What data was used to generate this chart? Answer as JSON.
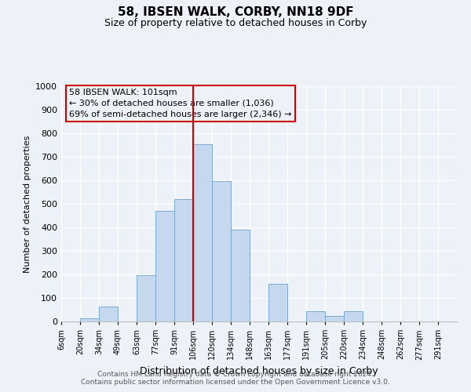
{
  "title": "58, IBSEN WALK, CORBY, NN18 9DF",
  "subtitle": "Size of property relative to detached houses in Corby",
  "xlabel": "Distribution of detached houses by size in Corby",
  "ylabel": "Number of detached properties",
  "bar_labels": [
    "6sqm",
    "20sqm",
    "34sqm",
    "49sqm",
    "63sqm",
    "77sqm",
    "91sqm",
    "106sqm",
    "120sqm",
    "134sqm",
    "148sqm",
    "163sqm",
    "177sqm",
    "191sqm",
    "205sqm",
    "220sqm",
    "234sqm",
    "248sqm",
    "262sqm",
    "277sqm",
    "291sqm"
  ],
  "bar_values": [
    0,
    12,
    63,
    0,
    198,
    470,
    520,
    755,
    597,
    390,
    0,
    160,
    0,
    43,
    25,
    45,
    0,
    0,
    0,
    0,
    0
  ],
  "bar_color": "#c5d8ed",
  "bar_edge_color": "#7aaad0",
  "vline_x_index": 7,
  "vline_color": "#cc0000",
  "annotation_title": "58 IBSEN WALK: 101sqm",
  "annotation_line1": "← 30% of detached houses are smaller (1,036)",
  "annotation_line2": "69% of semi-detached houses are larger (2,346) →",
  "annotation_box_edge": "#cc0000",
  "ylim": [
    0,
    1000
  ],
  "yticks": [
    0,
    100,
    200,
    300,
    400,
    500,
    600,
    700,
    800,
    900,
    1000
  ],
  "footer1": "Contains HM Land Registry data © Crown copyright and database right 2024.",
  "footer2": "Contains public sector information licensed under the Open Government Licence v3.0.",
  "background_color": "#edf2f9",
  "grid_color": "#ffffff"
}
